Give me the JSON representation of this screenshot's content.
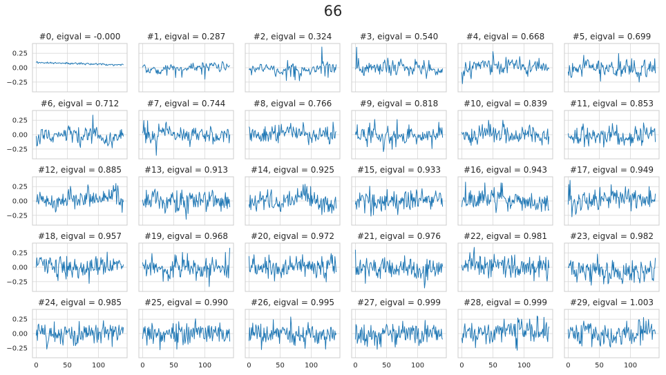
{
  "figure": {
    "suptitle": "66"
  },
  "colors": {
    "line": "#1f77b4",
    "grid": "#d9d9d9",
    "spine": "#cccccc",
    "text": "#262626",
    "background": "#ffffff"
  },
  "chart_data": {
    "type": "line",
    "layout": "5x6 grid of small multiples, shared x and y axes",
    "grid": true,
    "xlim": [
      -6,
      146
    ],
    "ylim": [
      -0.42,
      0.42
    ],
    "xticks": [
      0,
      50,
      100
    ],
    "xtick_labels": [
      "0",
      "50",
      "100"
    ],
    "yticks": [
      -0.25,
      0.0,
      0.25
    ],
    "ytick_labels": [
      "−0.25",
      "0.00",
      "0.25"
    ],
    "points_per_series": 141,
    "subplots": [
      {
        "title": "#0, eigval = -0.000",
        "eigval": -0.0
      },
      {
        "title": "#1, eigval = 0.287",
        "eigval": 0.287
      },
      {
        "title": "#2, eigval = 0.324",
        "eigval": 0.324
      },
      {
        "title": "#3, eigval = 0.540",
        "eigval": 0.54
      },
      {
        "title": "#4, eigval = 0.668",
        "eigval": 0.668
      },
      {
        "title": "#5, eigval = 0.699",
        "eigval": 0.699
      },
      {
        "title": "#6, eigval = 0.712",
        "eigval": 0.712
      },
      {
        "title": "#7, eigval = 0.744",
        "eigval": 0.744
      },
      {
        "title": "#8, eigval = 0.766",
        "eigval": 0.766
      },
      {
        "title": "#9, eigval = 0.818",
        "eigval": 0.818
      },
      {
        "title": "#10, eigval = 0.839",
        "eigval": 0.839
      },
      {
        "title": "#11, eigval = 0.853",
        "eigval": 0.853
      },
      {
        "title": "#12, eigval = 0.885",
        "eigval": 0.885
      },
      {
        "title": "#13, eigval = 0.913",
        "eigval": 0.913
      },
      {
        "title": "#14, eigval = 0.925",
        "eigval": 0.925
      },
      {
        "title": "#15, eigval = 0.933",
        "eigval": 0.933
      },
      {
        "title": "#16, eigval = 0.943",
        "eigval": 0.943
      },
      {
        "title": "#17, eigval = 0.949",
        "eigval": 0.949
      },
      {
        "title": "#18, eigval = 0.957",
        "eigval": 0.957
      },
      {
        "title": "#19, eigval = 0.968",
        "eigval": 0.968
      },
      {
        "title": "#20, eigval = 0.972",
        "eigval": 0.972
      },
      {
        "title": "#21, eigval = 0.976",
        "eigval": 0.976
      },
      {
        "title": "#22, eigval = 0.981",
        "eigval": 0.981
      },
      {
        "title": "#23, eigval = 0.982",
        "eigval": 0.982
      },
      {
        "title": "#24, eigval = 0.985",
        "eigval": 0.985
      },
      {
        "title": "#25, eigval = 0.990",
        "eigval": 0.99
      },
      {
        "title": "#26, eigval = 0.995",
        "eigval": 0.995
      },
      {
        "title": "#27, eigval = 0.999",
        "eigval": 0.999
      },
      {
        "title": "#28, eigval = 0.999",
        "eigval": 0.999
      },
      {
        "title": "#29, eigval = 1.003",
        "eigval": 1.003
      }
    ]
  }
}
